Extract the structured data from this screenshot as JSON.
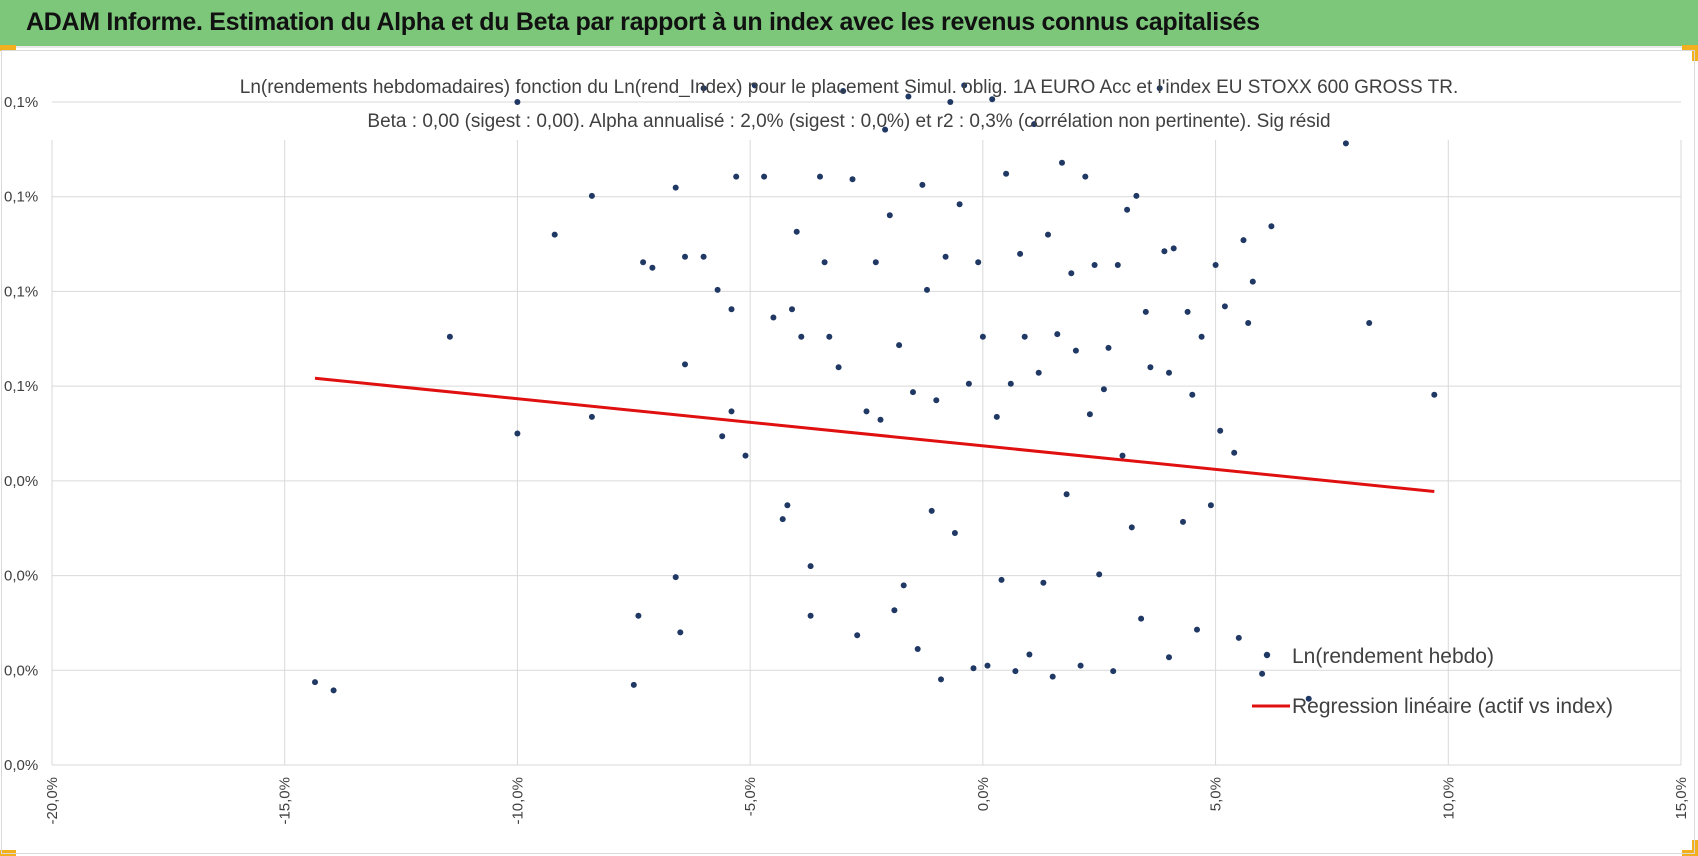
{
  "header": {
    "title": "ADAM Informe. Estimation du Alpha et du Beta par rapport à un index avec les revenus connus capitalisés"
  },
  "colors": {
    "banner": "#7dc77b",
    "points": "#203864",
    "regression": "#e01010",
    "grid": "#d9d9d9",
    "accent": "#f2b01e"
  },
  "chart_data": {
    "type": "scatter",
    "title_lines": [
      "Ln(rendements hebdomadaires) fonction du Ln(rend_Index) pour le placement Simul. oblig. 1A EURO Acc et l'index EU STOXX 600 GROSS TR.",
      "Beta : 0,00 (sigest : 0,00). Alpha annualisé : 2,0% (sigest : 0,0%) et r2 : 0,3% (corrélation non pertinente). Sig résid"
    ],
    "xlim": [
      -0.2,
      0.15
    ],
    "ylim": [
      -0.0012,
      0.0012
    ],
    "x_ticks": [
      "-20,0%",
      "-15,0%",
      "-10,0%",
      "-5,0%",
      "0,0%",
      "5,0%",
      "10,0%",
      "15,0%"
    ],
    "y_ticks": [
      "0,0%",
      "0,0%",
      "0,0%",
      "0,0%",
      "0,1%",
      "0,1%",
      "0,1%",
      "0,1%"
    ],
    "grid": true,
    "legend_position": "bottom-right",
    "series": [
      {
        "name": "Ln(rendement hebdo)",
        "kind": "scatter",
        "color": "#203864",
        "points_sample": [
          [
            -0.1435,
            -0.0009
          ],
          [
            -0.1395,
            -0.00093
          ],
          [
            -0.1145,
            0.00035
          ],
          [
            -0.1,
            0.0012
          ],
          [
            -0.1,
            0.0
          ],
          [
            -0.092,
            0.00072
          ],
          [
            -0.084,
            0.00086
          ],
          [
            -0.084,
            6e-05
          ],
          [
            -0.075,
            -0.00091
          ],
          [
            -0.074,
            -0.00066
          ],
          [
            -0.073,
            0.00062
          ],
          [
            -0.071,
            0.0006
          ],
          [
            -0.066,
            0.00089
          ],
          [
            -0.066,
            -0.00052
          ],
          [
            -0.065,
            -0.00072
          ],
          [
            -0.064,
            0.00025
          ],
          [
            -0.064,
            0.00064
          ],
          [
            -0.06,
            0.00064
          ],
          [
            -0.06,
            0.00125
          ],
          [
            -0.057,
            0.00052
          ],
          [
            -0.056,
            -1e-05
          ],
          [
            -0.054,
            0.00045
          ],
          [
            -0.054,
            8e-05
          ],
          [
            -0.053,
            0.00093
          ],
          [
            -0.051,
            -8e-05
          ],
          [
            -0.049,
            0.00126
          ],
          [
            -0.047,
            0.00093
          ],
          [
            -0.045,
            0.00042
          ],
          [
            -0.043,
            -0.00031
          ],
          [
            -0.042,
            -0.00026
          ],
          [
            -0.041,
            0.00045
          ],
          [
            -0.04,
            0.00073
          ],
          [
            -0.039,
            0.00035
          ],
          [
            -0.037,
            -0.00048
          ],
          [
            -0.037,
            -0.00066
          ],
          [
            -0.035,
            0.00093
          ],
          [
            -0.034,
            0.00062
          ],
          [
            -0.033,
            0.00035
          ],
          [
            -0.031,
            0.00024
          ],
          [
            -0.03,
            0.00124
          ],
          [
            -0.028,
            0.00092
          ],
          [
            -0.027,
            -0.00073
          ],
          [
            -0.025,
            8e-05
          ],
          [
            -0.023,
            0.00062
          ],
          [
            -0.022,
            5e-05
          ],
          [
            -0.021,
            0.0011
          ],
          [
            -0.02,
            0.00079
          ],
          [
            -0.019,
            -0.00064
          ],
          [
            -0.018,
            0.00032
          ],
          [
            -0.017,
            -0.00055
          ],
          [
            -0.016,
            0.00122
          ],
          [
            -0.015,
            0.00015
          ],
          [
            -0.014,
            -0.00078
          ],
          [
            -0.013,
            0.0009
          ],
          [
            -0.012,
            0.00052
          ],
          [
            -0.011,
            -0.00028
          ],
          [
            -0.01,
            0.00012
          ],
          [
            -0.009,
            -0.00089
          ],
          [
            -0.008,
            0.00064
          ],
          [
            -0.007,
            0.0012
          ],
          [
            -0.006,
            -0.00036
          ],
          [
            -0.005,
            0.00083
          ],
          [
            -0.004,
            0.00126
          ],
          [
            -0.003,
            0.00018
          ],
          [
            -0.002,
            -0.00085
          ],
          [
            -0.001,
            0.00062
          ],
          [
            0.0,
            0.00035
          ],
          [
            0.001,
            -0.00084
          ],
          [
            0.002,
            0.00121
          ],
          [
            0.003,
            6e-05
          ],
          [
            0.004,
            -0.00053
          ],
          [
            0.005,
            0.00094
          ],
          [
            0.006,
            0.00018
          ],
          [
            0.007,
            -0.00086
          ],
          [
            0.008,
            0.00065
          ],
          [
            0.009,
            0.00035
          ],
          [
            0.01,
            -0.0008
          ],
          [
            0.011,
            0.00112
          ],
          [
            0.012,
            0.00022
          ],
          [
            0.013,
            -0.00054
          ],
          [
            0.014,
            0.00072
          ],
          [
            0.015,
            -0.00088
          ],
          [
            0.016,
            0.00036
          ],
          [
            0.017,
            0.00098
          ],
          [
            0.018,
            -0.00022
          ],
          [
            0.019,
            0.00058
          ],
          [
            0.02,
            0.0003
          ],
          [
            0.021,
            -0.00084
          ],
          [
            0.022,
            0.00093
          ],
          [
            0.023,
            7e-05
          ],
          [
            0.024,
            0.00061
          ],
          [
            0.025,
            -0.00051
          ],
          [
            0.026,
            0.00016
          ],
          [
            0.027,
            0.00031
          ],
          [
            0.028,
            -0.00086
          ],
          [
            0.029,
            0.00061
          ],
          [
            0.03,
            -8e-05
          ],
          [
            0.031,
            0.00081
          ],
          [
            0.032,
            -0.00034
          ],
          [
            0.033,
            0.00086
          ],
          [
            0.034,
            -0.00067
          ],
          [
            0.035,
            0.00044
          ],
          [
            0.036,
            0.00024
          ],
          [
            0.038,
            0.00125
          ],
          [
            0.039,
            0.00066
          ],
          [
            0.04,
            0.00022
          ],
          [
            0.04,
            -0.00081
          ],
          [
            0.041,
            0.00067
          ],
          [
            0.043,
            -0.00032
          ],
          [
            0.044,
            0.00044
          ],
          [
            0.045,
            0.00014
          ],
          [
            0.046,
            -0.00071
          ],
          [
            0.047,
            0.00035
          ],
          [
            0.049,
            -0.00026
          ],
          [
            0.05,
            0.00061
          ],
          [
            0.051,
            1e-05
          ],
          [
            0.052,
            0.00046
          ],
          [
            0.054,
            -7e-05
          ],
          [
            0.055,
            -0.00074
          ],
          [
            0.056,
            0.0007
          ],
          [
            0.057,
            0.0004
          ],
          [
            0.058,
            0.00055
          ],
          [
            0.06,
            -0.00087
          ],
          [
            0.062,
            0.00075
          ],
          [
            0.07,
            -0.00096
          ],
          [
            0.078,
            0.00105
          ],
          [
            0.083,
            0.0004
          ],
          [
            0.097,
            0.00014
          ]
        ]
      },
      {
        "name": "Regression linéaire (actif vs index)",
        "kind": "line",
        "color": "#e01010",
        "x": [
          -0.1435,
          0.097
        ],
        "y": [
          0.0002,
          -0.00021
        ]
      }
    ]
  }
}
